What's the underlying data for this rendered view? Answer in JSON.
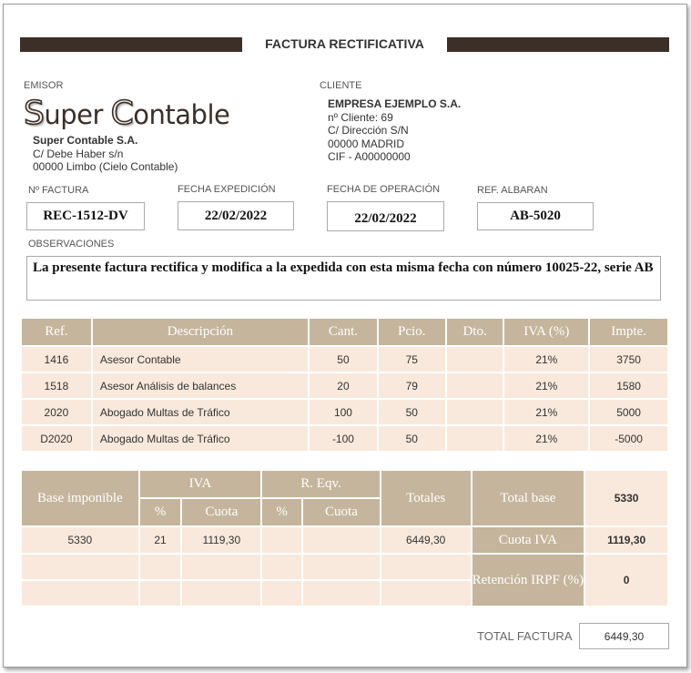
{
  "title": "FACTURA RECTIFICATIVA",
  "emisor": {
    "label": "EMISOR",
    "logo_first": "S",
    "logo_mid": "uper ",
    "logo_cap2": "C",
    "logo_rest": "ontable",
    "name": "Super Contable S.A.",
    "address": "C/ Debe Haber s/n",
    "city": "00000 Limbo (Cielo Contable)"
  },
  "cliente": {
    "label": "CLIENTE",
    "name": "EMPRESA EJEMPLO S.A.",
    "client_no": "nº Cliente: 69",
    "address": "C/ Dirección S/N",
    "city": "00000 MADRID",
    "cif": "CIF - A00000000"
  },
  "fields": {
    "invoice_no_label": "Nº FACTURA",
    "invoice_no": "REC-1512-DV",
    "issue_date_label": "FECHA EXPEDICIÓN",
    "issue_date": "22/02/2022",
    "op_date_label": "FECHA DE OPERACIÓN",
    "op_date": "22/02/2022",
    "ref_label": "REF. ALBARAN",
    "ref": "AB-5020"
  },
  "observaciones": {
    "label": "OBSERVACIONES",
    "text": "La presente factura rectifica y modifica a la expedida con esta misma fecha con número 10025-22, serie AB"
  },
  "items": {
    "headers": [
      "Ref.",
      "Descripción",
      "Cant.",
      "Pcio.",
      "Dto.",
      "IVA (%)",
      "Impte."
    ],
    "rows": [
      {
        "ref": "1416",
        "desc": "Asesor Contable",
        "qty": "50",
        "price": "75",
        "dto": "",
        "iva": "21%",
        "amount": "3750"
      },
      {
        "ref": "1518",
        "desc": "Asesor Análisis de balances",
        "qty": "20",
        "price": "79",
        "dto": "",
        "iva": "21%",
        "amount": "1580"
      },
      {
        "ref": "2020",
        "desc": "Abogado Multas de Tráfico",
        "qty": "100",
        "price": "50",
        "dto": "",
        "iva": "21%",
        "amount": "5000"
      },
      {
        "ref": "D2020",
        "desc": "Abogado Multas de Tráfico",
        "qty": "-100",
        "price": "50",
        "dto": "",
        "iva": "21%",
        "amount": "-5000"
      }
    ]
  },
  "summary": {
    "base_label": "Base imponible",
    "iva_label": "IVA",
    "req_label": "R. Eqv.",
    "pct_label": "%",
    "cuota_label": "Cuota",
    "totales_label": "Totales",
    "base": "5330",
    "iva_pct": "21",
    "iva_cuota": "1119,30",
    "req_pct": "",
    "req_cuota": "",
    "totales": "6449,30",
    "total_base_label": "Total base",
    "total_base": "5330",
    "cuota_iva_label": "Cuota IVA",
    "cuota_iva": "1119,30",
    "retencion_label": "Retención IRPF (%)",
    "retencion": "0"
  },
  "total": {
    "label": "TOTAL FACTURA",
    "value": "6449,30"
  }
}
